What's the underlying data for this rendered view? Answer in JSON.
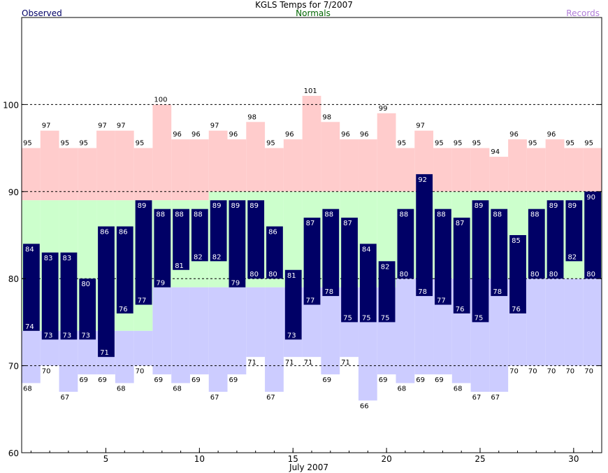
{
  "chart_data": {
    "type": "bar",
    "title": "KGLS Temps for 7/2007",
    "legend": {
      "observed": "Observed",
      "normals": "Normals",
      "records": "Records"
    },
    "xlabel": "July 2007",
    "ylabel": "",
    "ylim": [
      60,
      110
    ],
    "xlim": [
      0.5,
      31.5
    ],
    "yticks": [
      60,
      70,
      80,
      90,
      100
    ],
    "xticks": [
      5,
      10,
      15,
      20,
      25,
      30
    ],
    "grid_dashed_y": [
      70,
      80,
      90,
      100
    ],
    "days": [
      1,
      2,
      3,
      4,
      5,
      6,
      7,
      8,
      9,
      10,
      11,
      12,
      13,
      14,
      15,
      16,
      17,
      18,
      19,
      20,
      21,
      22,
      23,
      24,
      25,
      26,
      27,
      28,
      29,
      30,
      31
    ],
    "observed_high": [
      84,
      83,
      83,
      80,
      86,
      86,
      89,
      88,
      88,
      88,
      89,
      89,
      89,
      86,
      81,
      87,
      88,
      87,
      84,
      82,
      88,
      92,
      88,
      87,
      89,
      88,
      85,
      88,
      89,
      89,
      90
    ],
    "observed_low": [
      74,
      73,
      73,
      73,
      71,
      76,
      77,
      79,
      81,
      82,
      82,
      79,
      80,
      80,
      73,
      77,
      78,
      75,
      75,
      75,
      80,
      78,
      77,
      76,
      75,
      78,
      76,
      80,
      80,
      82,
      80
    ],
    "normal_high": [
      89,
      89,
      89,
      89,
      89,
      89,
      89,
      89,
      89,
      89,
      90,
      90,
      90,
      90,
      90,
      90,
      90,
      90,
      90,
      90,
      90,
      90,
      90,
      90,
      90,
      90,
      90,
      90,
      90,
      90,
      90
    ],
    "normal_low": [
      74,
      74,
      74,
      74,
      74,
      74,
      74,
      79,
      79,
      79,
      79,
      79,
      79,
      79,
      79,
      79,
      79,
      79,
      79,
      79,
      80,
      80,
      80,
      80,
      80,
      80,
      80,
      80,
      80,
      80,
      80
    ],
    "record_high": [
      95,
      97,
      95,
      95,
      97,
      97,
      95,
      100,
      96,
      96,
      97,
      96,
      98,
      95,
      96,
      101,
      98,
      96,
      96,
      99,
      95,
      97,
      95,
      95,
      95,
      94,
      96,
      95,
      96,
      95,
      95
    ],
    "record_low": [
      68,
      70,
      67,
      69,
      69,
      68,
      70,
      69,
      68,
      69,
      67,
      69,
      71,
      67,
      71,
      71,
      69,
      71,
      66,
      69,
      68,
      69,
      69,
      68,
      67,
      67,
      70,
      70,
      70,
      70,
      70
    ],
    "colors": {
      "observed": "#000066",
      "normal": "#ccffcc",
      "record_high": "#ffcccc",
      "record_low": "#ccccff",
      "bar_label": "#ffffff",
      "record_label": "#000000",
      "grid": "#000000"
    }
  }
}
